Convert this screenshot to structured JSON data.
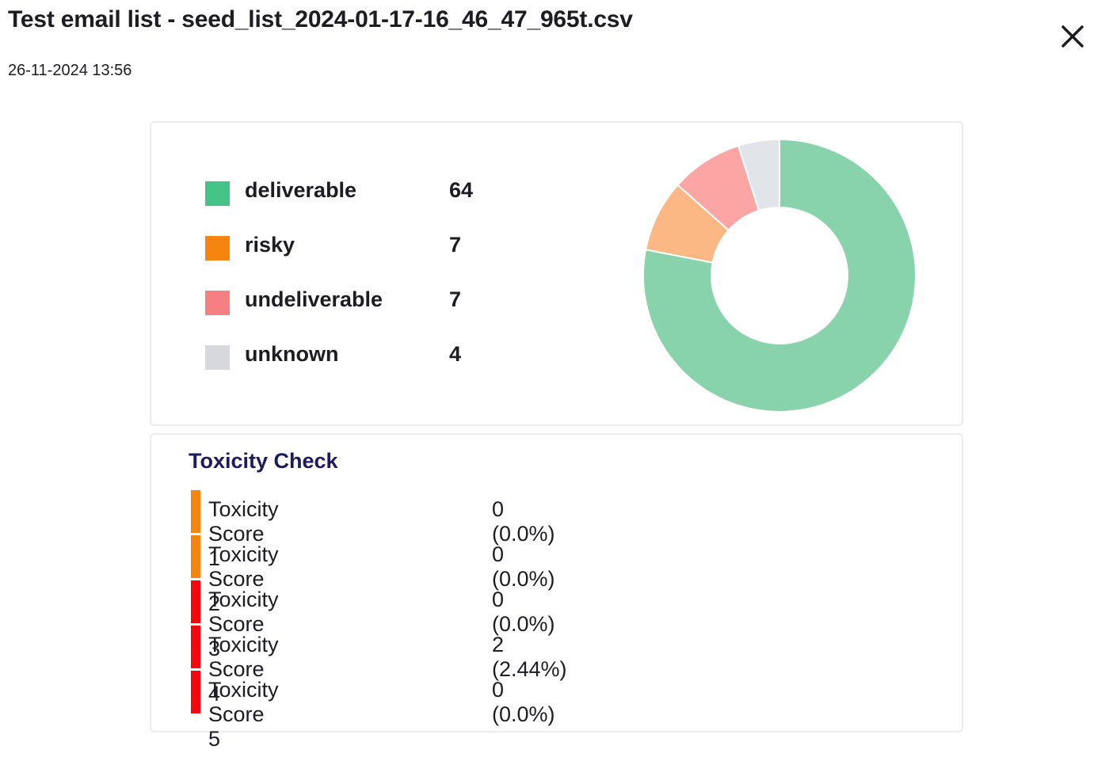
{
  "header": {
    "title": "Test email list - seed_list_2024-01-17-16_46_47_965t.csv",
    "timestamp": "26-11-2024 13:56",
    "close_icon": "close-icon"
  },
  "summary": {
    "items": [
      {
        "label": "deliverable",
        "count": "64",
        "value": 64,
        "swatch": "#45c387",
        "slice": "#88d3ab"
      },
      {
        "label": "risky",
        "count": "7",
        "value": 7,
        "swatch": "#f6850f",
        "slice": "#fbb885"
      },
      {
        "label": "undeliverable",
        "count": "7",
        "value": 7,
        "swatch": "#f67f84",
        "slice": "#fca5a5"
      },
      {
        "label": "unknown",
        "count": "4",
        "value": 4,
        "swatch": "#d6d8db",
        "slice": "#e1e4e8"
      }
    ]
  },
  "chart_data": {
    "type": "pie",
    "style": "donut",
    "categories": [
      "deliverable",
      "risky",
      "undeliverable",
      "unknown"
    ],
    "values": [
      64,
      7,
      7,
      4
    ],
    "colors": [
      "#88d3ab",
      "#fbb885",
      "#fca5a5",
      "#e1e4e8"
    ],
    "legend": "left"
  },
  "toxicity": {
    "heading": "Toxicity Check",
    "rows": [
      {
        "label": "Toxicity Score 1",
        "value": "0 (0.0%)",
        "color": "#f6850f"
      },
      {
        "label": "Toxicity Score 2",
        "value": "0 (0.0%)",
        "color": "#f6850f"
      },
      {
        "label": "Toxicity Score 3",
        "value": "0 (0.0%)",
        "color": "#f5070e"
      },
      {
        "label": "Toxicity Score 4",
        "value": "2 (2.44%)",
        "color": "#f5070e"
      },
      {
        "label": "Toxicity Score 5",
        "value": "0 (0.0%)",
        "color": "#f5070e"
      }
    ]
  }
}
